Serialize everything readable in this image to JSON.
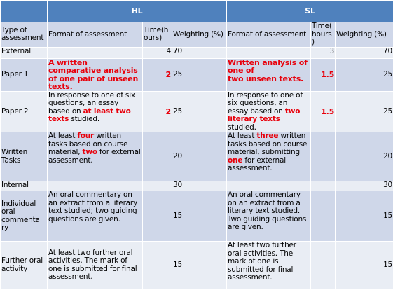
{
  "header": {
    "hl": "HL",
    "sl": "SL"
  },
  "columns": {
    "type": "Type of assessment",
    "format": "Format of assessment",
    "time_hl": "Time(h ours)",
    "weight_hl": "Weighting (%)",
    "format_sl": "Format of assessment",
    "time_sl": "Time( hours )",
    "weight_sl": "Weighting (%)"
  },
  "rows": {
    "external": {
      "type": "External",
      "time_hl": "4",
      "weight_hl": "70",
      "time_sl": "3",
      "weight_sl": "70"
    },
    "paper1": {
      "type": "Paper 1",
      "format_hl": "A written comparative analysis of one pair of unseen texts.",
      "time_hl": "2",
      "weight_hl": "25",
      "format_sl_a": "Written analysis of one of",
      "format_sl_b": "two unseen texts.",
      "time_sl": "1.5",
      "weight_sl": "25"
    },
    "paper2": {
      "type": "Paper 2",
      "format_hl_a": "In response to one of six questions, an essay based on ",
      "format_hl_b": "at least two texts",
      "format_hl_c": " studied.",
      "time_hl": "2",
      "weight_hl": "25",
      "format_sl_a": "In response to one of six questions, an essay based on ",
      "format_sl_b": "two literary texts",
      "format_sl_c": " studied.",
      "time_sl": "1.5",
      "weight_sl": "25"
    },
    "written": {
      "type": "Written Tasks",
      "format_hl_a": "At least ",
      "format_hl_b": "four",
      "format_hl_c": " written tasks based on course material, ",
      "format_hl_d": "two",
      "format_hl_e": " for external assessment.",
      "weight_hl": "20",
      "format_sl_a": "At least ",
      "format_sl_b": "three",
      "format_sl_c": " written tasks based on course material, submitting ",
      "format_sl_d": "one",
      "format_sl_e": " for external assessment.",
      "weight_sl": "20"
    },
    "internal": {
      "type": "Internal",
      "weight_hl": "30",
      "weight_sl": "30"
    },
    "individual": {
      "type": "Individual oral commenta ry",
      "format_hl": "An oral commentary on an extract from a literary text studied; two guiding questions are given.",
      "weight_hl": "15",
      "format_sl": "An oral commentary on an extract from a literary text studied. Two guiding questions are given.",
      "weight_sl": "15"
    },
    "further": {
      "type": "Further oral activity",
      "format_hl": "At least two further oral activities. The mark of one is submitted for final assessment.",
      "weight_hl": "15",
      "format_sl": "At least two further oral activities. The mark of one is submitted for final assessment.",
      "weight_sl": "15"
    }
  }
}
